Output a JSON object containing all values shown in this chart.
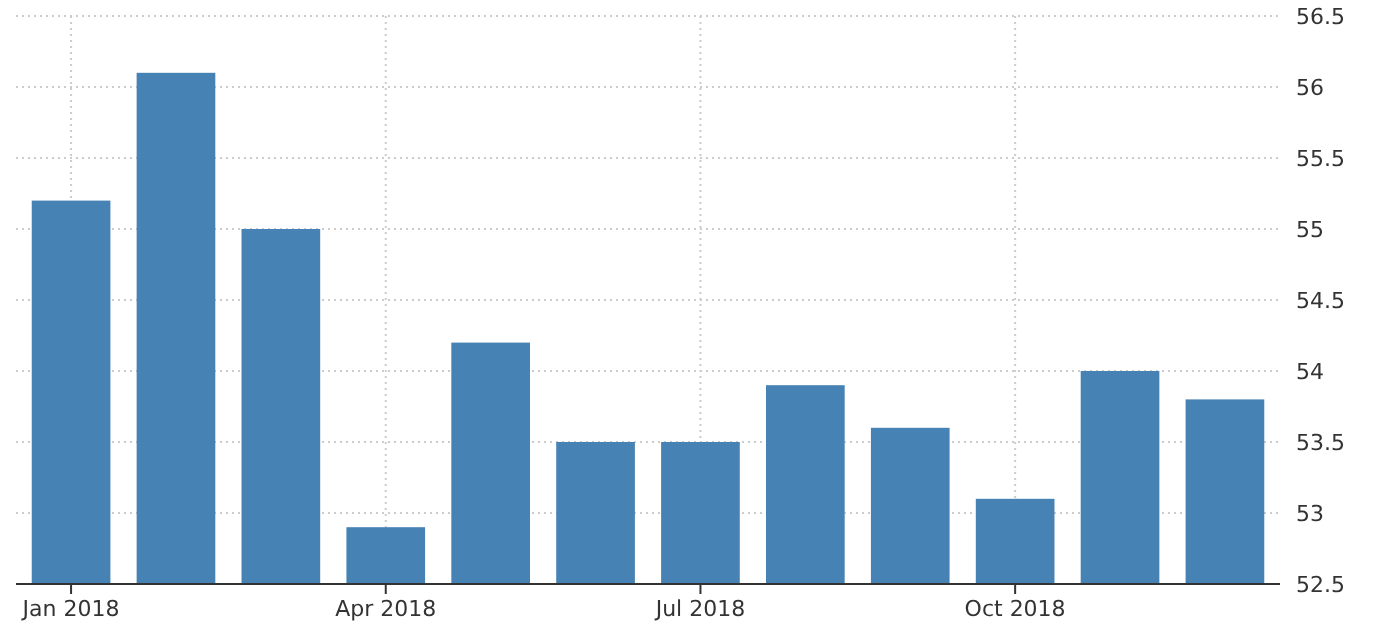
{
  "chart_data": {
    "type": "bar",
    "categories": [
      "Jan 2018",
      null,
      null,
      "Apr 2018",
      null,
      null,
      "Jul 2018",
      null,
      null,
      "Oct 2018",
      null,
      null
    ],
    "values": [
      55.2,
      56.1,
      55.0,
      52.9,
      54.2,
      53.5,
      53.5,
      53.9,
      53.6,
      53.1,
      54.0,
      53.8
    ],
    "color": "#4682b4",
    "ylim": [
      52.5,
      56.5
    ],
    "yticks": [
      52.5,
      53,
      53.5,
      54,
      54.5,
      55,
      55.5,
      56,
      56.5
    ],
    "grid": true
  }
}
